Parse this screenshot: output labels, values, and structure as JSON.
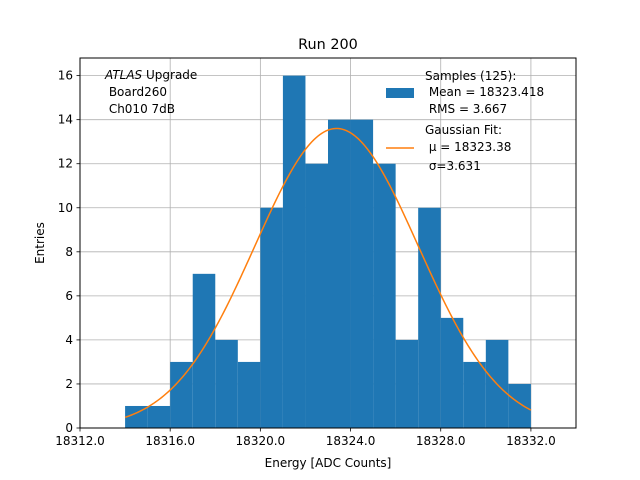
{
  "chart_data": {
    "type": "bar",
    "title": "Run 200",
    "xlabel": "Energy [ADC Counts]",
    "ylabel": "Entries",
    "xlim": [
      18312.0,
      18334.0
    ],
    "ylim": [
      0,
      16.8
    ],
    "grid": true,
    "xticks": [
      18312.0,
      18316.0,
      18320.0,
      18324.0,
      18328.0,
      18332.0
    ],
    "xtick_labels": [
      "18312.0",
      "18316.0",
      "18320.0",
      "18324.0",
      "18328.0",
      "18332.0"
    ],
    "yticks": [
      0,
      2,
      4,
      6,
      8,
      10,
      12,
      14,
      16
    ],
    "ytick_labels": [
      "0",
      "2",
      "4",
      "6",
      "8",
      "10",
      "12",
      "14",
      "16"
    ],
    "bins": {
      "edges": [
        18314.0,
        18315.0,
        18316.0,
        18317.0,
        18318.0,
        18319.0,
        18320.0,
        18321.0,
        18322.0,
        18323.0,
        18324.0,
        18325.0,
        18326.0,
        18327.0,
        18328.0,
        18329.0,
        18330.0,
        18331.0,
        18332.0
      ],
      "counts": [
        1,
        1,
        3,
        7,
        4,
        3,
        10,
        16,
        12,
        14,
        14,
        12,
        4,
        10,
        5,
        3,
        4,
        2
      ]
    },
    "fit": {
      "type": "gaussian",
      "mu": 18323.38,
      "sigma": 3.631,
      "x_range": [
        18314.0,
        18332.0
      ],
      "amplitude": 13.6
    },
    "colors": {
      "hist": "#1f77b4",
      "fit": "#ff7f0e",
      "grid": "#b0b0b0"
    },
    "legend_position": "upper right",
    "legend": [
      {
        "type": "patch",
        "lines": [
          "Samples (125):",
          " Mean = 18323.418",
          " RMS = 3.667"
        ]
      },
      {
        "type": "line",
        "lines": [
          "Gaussian Fit:",
          " μ = 18323.38",
          " σ=3.631"
        ]
      }
    ],
    "annotation": {
      "atlas": "ATLAS",
      "rest": " Upgrade",
      "line2": " Board260",
      "line3": " Ch010 7dB"
    }
  }
}
